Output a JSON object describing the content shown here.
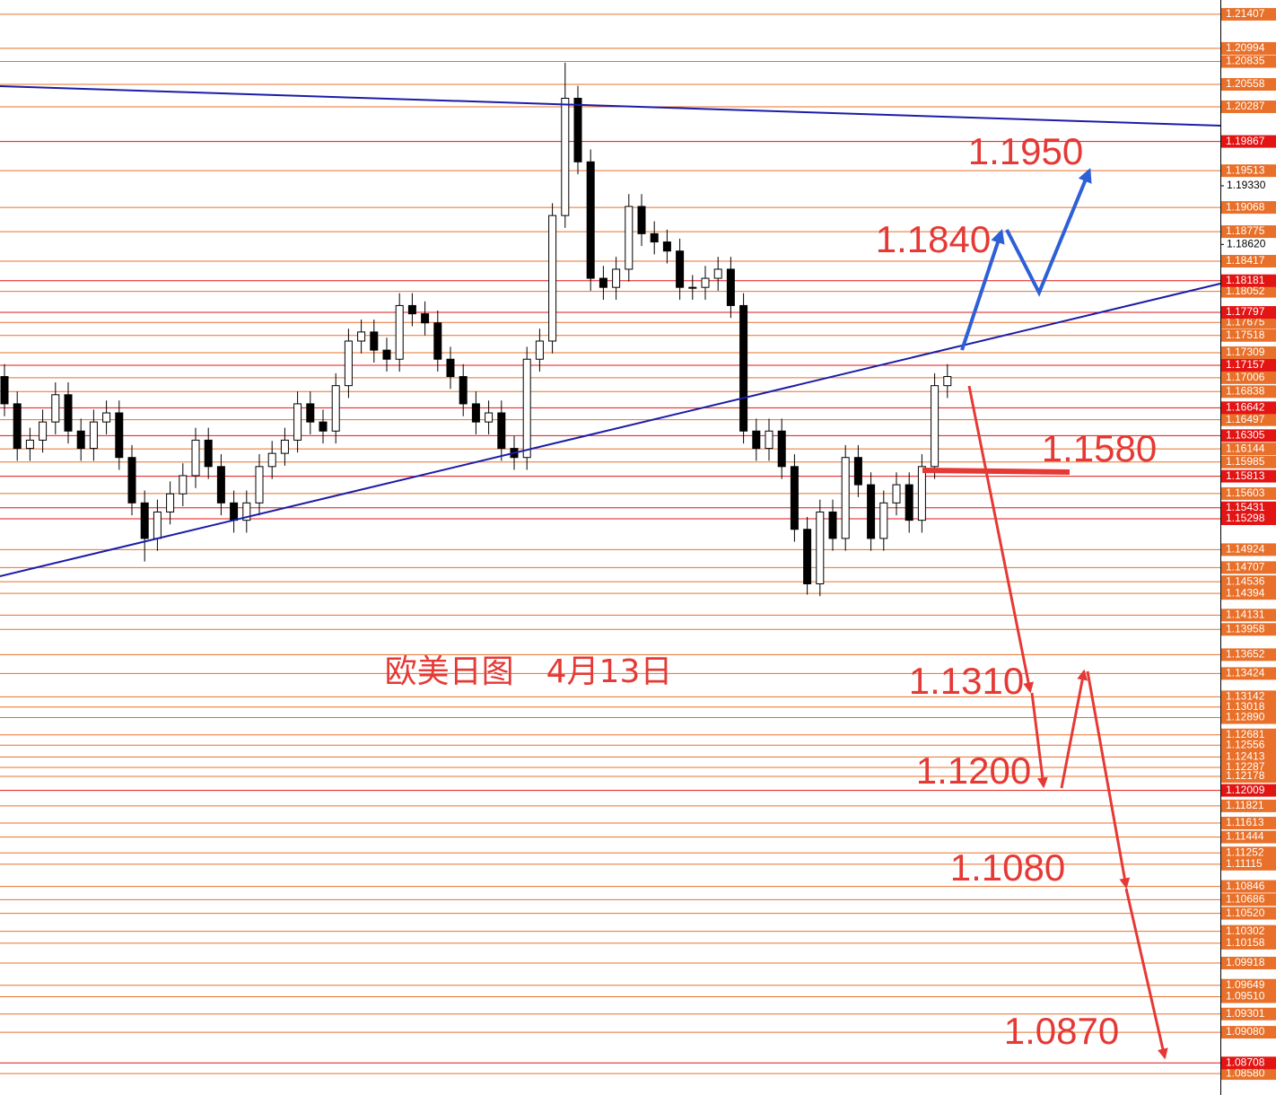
{
  "chart_data": {
    "type": "candlestick",
    "title": "欧美日图　4月13日",
    "ylim": [
      1.0832,
      1.2158
    ],
    "yticks": [
      {
        "value": 1.1933,
        "label": "1.19330"
      },
      {
        "value": 1.1862,
        "label": "1.18620"
      }
    ],
    "level_color": "#e8702a",
    "key_level_color": "#e31414",
    "up_color": "#ffffff",
    "down_color": "#000000",
    "levels": [
      {
        "value": 1.21407,
        "label": "1.21407"
      },
      {
        "value": 1.20994,
        "label": "1.20994"
      },
      {
        "value": 1.20835,
        "label": "1.20835"
      },
      {
        "value": 1.20558,
        "label": "1.20558"
      },
      {
        "value": 1.20287,
        "label": "1.20287"
      },
      {
        "value": 1.19513,
        "label": "1.19513"
      },
      {
        "value": 1.19068,
        "label": "1.19068"
      },
      {
        "value": 1.18775,
        "label": "1.18775"
      },
      {
        "value": 1.18417,
        "label": "1.18417"
      },
      {
        "value": 1.18052,
        "label": "1.18052"
      },
      {
        "value": 1.17675,
        "label": "1.17675"
      },
      {
        "value": 1.17518,
        "label": "1.17518"
      },
      {
        "value": 1.17309,
        "label": "1.17309"
      },
      {
        "value": 1.17006,
        "label": "1.17006"
      },
      {
        "value": 1.16838,
        "label": "1.16838"
      },
      {
        "value": 1.16497,
        "label": "1.16497"
      },
      {
        "value": 1.16144,
        "label": "1.16144"
      },
      {
        "value": 1.15985,
        "label": "1.15985"
      },
      {
        "value": 1.15603,
        "label": "1.15603"
      },
      {
        "value": 1.14924,
        "label": "1.14924"
      },
      {
        "value": 1.14707,
        "label": "1.14707"
      },
      {
        "value": 1.14536,
        "label": "1.14536"
      },
      {
        "value": 1.14394,
        "label": "1.14394"
      },
      {
        "value": 1.14131,
        "label": "1.14131"
      },
      {
        "value": 1.13958,
        "label": "1.13958"
      },
      {
        "value": 1.13652,
        "label": "1.13652"
      },
      {
        "value": 1.13424,
        "label": "1.13424"
      },
      {
        "value": 1.13142,
        "label": "1.13142"
      },
      {
        "value": 1.13018,
        "label": "1.13018"
      },
      {
        "value": 1.1289,
        "label": "1.12890"
      },
      {
        "value": 1.12681,
        "label": "1.12681"
      },
      {
        "value": 1.12556,
        "label": "1.12556"
      },
      {
        "value": 1.12413,
        "label": "1.12413"
      },
      {
        "value": 1.12287,
        "label": "1.12287"
      },
      {
        "value": 1.12178,
        "label": "1.12178"
      },
      {
        "value": 1.11821,
        "label": "1.11821"
      },
      {
        "value": 1.11613,
        "label": "1.11613"
      },
      {
        "value": 1.11444,
        "label": "1.11444"
      },
      {
        "value": 1.11252,
        "label": "1.11252"
      },
      {
        "value": 1.11115,
        "label": "1.11115"
      },
      {
        "value": 1.10846,
        "label": "1.10846"
      },
      {
        "value": 1.10686,
        "label": "1.10686"
      },
      {
        "value": 1.1052,
        "label": "1.10520"
      },
      {
        "value": 1.10302,
        "label": "1.10302"
      },
      {
        "value": 1.10158,
        "label": "1.10158"
      },
      {
        "value": 1.09918,
        "label": "1.09918"
      },
      {
        "value": 1.09649,
        "label": "1.09649"
      },
      {
        "value": 1.0951,
        "label": "1.09510"
      },
      {
        "value": 1.09301,
        "label": "1.09301"
      },
      {
        "value": 1.0908,
        "label": "1.09080"
      },
      {
        "value": 1.0858,
        "label": "1.08580"
      }
    ],
    "key_levels": [
      {
        "value": 1.19867,
        "label": "1.19867"
      },
      {
        "value": 1.18181,
        "label": "1.18181"
      },
      {
        "value": 1.17797,
        "label": "1.17797"
      },
      {
        "value": 1.17157,
        "label": "1.17157"
      },
      {
        "value": 1.16642,
        "label": "1.16642"
      },
      {
        "value": 1.16305,
        "label": "1.16305"
      },
      {
        "value": 1.15813,
        "label": "1.15813"
      },
      {
        "value": 1.15431,
        "label": "1.15431"
      },
      {
        "value": 1.15298,
        "label": "1.15298"
      },
      {
        "value": 1.12009,
        "label": "1.12009"
      },
      {
        "value": 1.08708,
        "label": "1.08708"
      }
    ],
    "annotations": [
      "1.1950",
      "1.1840",
      "1.1580",
      "1.1310",
      "1.1200",
      "1.1080",
      "1.0870"
    ],
    "open": [
      1.1702,
      1.1669,
      1.1615,
      1.1625,
      1.1647,
      1.168,
      1.1636,
      1.1615,
      1.1647,
      1.1658,
      1.1604,
      1.1549,
      1.1506,
      1.1538,
      1.156,
      1.1582,
      1.1625,
      1.1593,
      1.1549,
      1.1528,
      1.1549,
      1.1593,
      1.1609,
      1.1625,
      1.1669,
      1.1647,
      1.1636,
      1.1691,
      1.1745,
      1.1756,
      1.1734,
      1.1723,
      1.1788,
      1.1778,
      1.1767,
      1.1723,
      1.1702,
      1.1669,
      1.1647,
      1.1658,
      1.1615,
      1.1604,
      1.1723,
      1.1745,
      1.1897,
      1.2039,
      1.1962,
      1.1821,
      1.181,
      1.1832,
      1.1908,
      1.1875,
      1.1865,
      1.1854,
      1.181,
      1.181,
      1.1821,
      1.1832,
      1.1788,
      1.1636,
      1.1615,
      1.1636,
      1.1593,
      1.1517,
      1.1451,
      1.1538,
      1.1506,
      1.1604,
      1.1571,
      1.1506,
      1.1549,
      1.1571,
      1.1528,
      1.1593,
      1.1691
    ],
    "high": [
      1.1717,
      1.1684,
      1.164,
      1.1662,
      1.1695,
      1.1695,
      1.1651,
      1.1662,
      1.1673,
      1.1673,
      1.1619,
      1.1564,
      1.1553,
      1.1575,
      1.1597,
      1.164,
      1.164,
      1.1608,
      1.1564,
      1.1564,
      1.1608,
      1.1624,
      1.164,
      1.1684,
      1.1684,
      1.1662,
      1.1706,
      1.176,
      1.1771,
      1.1771,
      1.1749,
      1.1803,
      1.1803,
      1.1793,
      1.1782,
      1.1738,
      1.1717,
      1.1684,
      1.1673,
      1.1673,
      1.163,
      1.1738,
      1.176,
      1.1912,
      1.2082,
      1.2054,
      1.1977,
      1.1836,
      1.1847,
      1.1923,
      1.1923,
      1.189,
      1.188,
      1.1869,
      1.1825,
      1.1836,
      1.1847,
      1.1847,
      1.1803,
      1.1651,
      1.1651,
      1.1651,
      1.1608,
      1.1532,
      1.1553,
      1.1553,
      1.1619,
      1.1619,
      1.1586,
      1.1564,
      1.1586,
      1.1586,
      1.1608,
      1.1706,
      1.1717
    ],
    "low": [
      1.1654,
      1.16,
      1.16,
      1.161,
      1.1632,
      1.1621,
      1.16,
      1.16,
      1.1632,
      1.1589,
      1.1534,
      1.1478,
      1.1491,
      1.1523,
      1.1545,
      1.1567,
      1.1578,
      1.1534,
      1.1513,
      1.1513,
      1.1534,
      1.1578,
      1.1594,
      1.161,
      1.1632,
      1.1621,
      1.1621,
      1.1676,
      1.173,
      1.1719,
      1.1708,
      1.1708,
      1.1763,
      1.1752,
      1.1708,
      1.1687,
      1.1654,
      1.1632,
      1.1632,
      1.16,
      1.1589,
      1.1589,
      1.1708,
      1.173,
      1.1882,
      1.1947,
      1.1806,
      1.1795,
      1.1795,
      1.1817,
      1.186,
      1.185,
      1.1839,
      1.1795,
      1.1795,
      1.1795,
      1.1806,
      1.1773,
      1.1621,
      1.16,
      1.16,
      1.1578,
      1.1502,
      1.1438,
      1.1436,
      1.1491,
      1.1491,
      1.1556,
      1.1491,
      1.1491,
      1.1534,
      1.1513,
      1.1513,
      1.1578,
      1.1676
    ],
    "close": [
      1.1669,
      1.1615,
      1.1625,
      1.1647,
      1.168,
      1.1636,
      1.1615,
      1.1647,
      1.1658,
      1.1604,
      1.1549,
      1.1506,
      1.1538,
      1.156,
      1.1582,
      1.1625,
      1.1593,
      1.1549,
      1.1528,
      1.1549,
      1.1593,
      1.1609,
      1.1625,
      1.1669,
      1.1647,
      1.1636,
      1.1691,
      1.1745,
      1.1756,
      1.1734,
      1.1723,
      1.1788,
      1.1778,
      1.1767,
      1.1723,
      1.1702,
      1.1669,
      1.1647,
      1.1658,
      1.1615,
      1.1604,
      1.1723,
      1.1745,
      1.1897,
      1.2039,
      1.1962,
      1.1821,
      1.181,
      1.1832,
      1.1908,
      1.1875,
      1.1865,
      1.1854,
      1.181,
      1.181,
      1.1821,
      1.1832,
      1.1788,
      1.1636,
      1.1615,
      1.1636,
      1.1593,
      1.1517,
      1.1451,
      1.1538,
      1.1506,
      1.1604,
      1.1571,
      1.1506,
      1.1549,
      1.1571,
      1.1528,
      1.1593,
      1.1691,
      1.1702
    ]
  }
}
